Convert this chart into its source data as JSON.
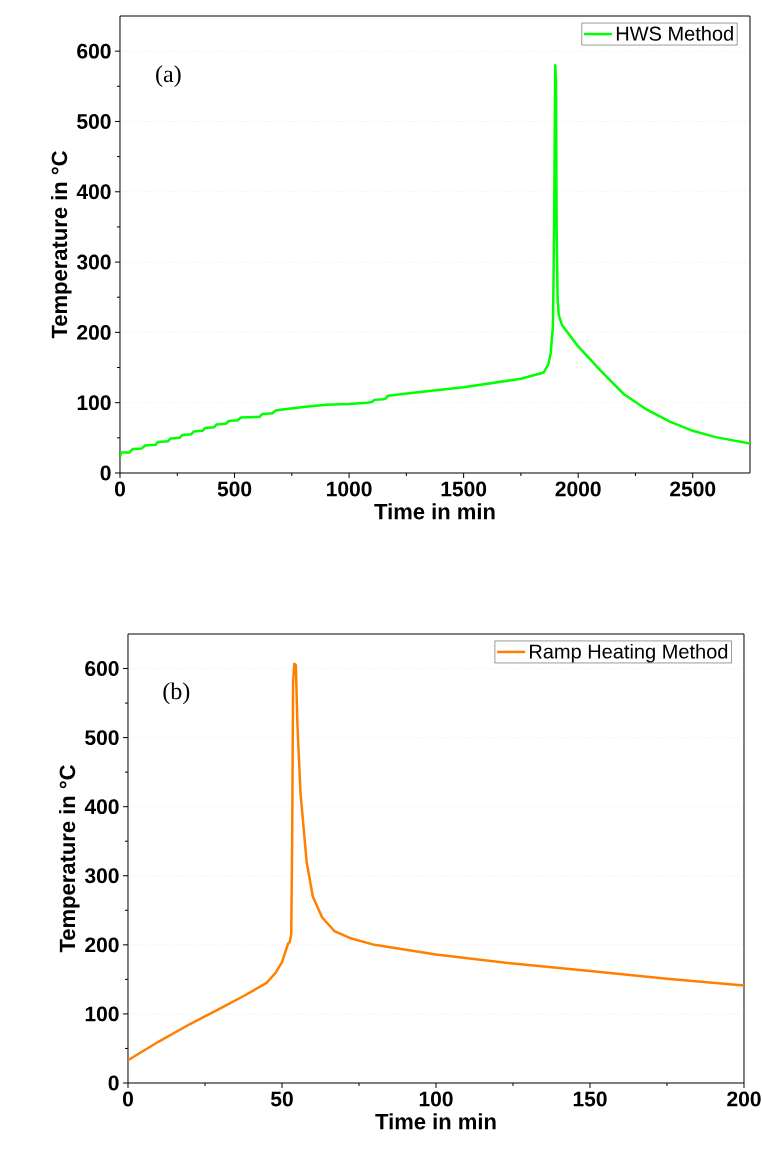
{
  "chart_data": [
    {
      "type": "line",
      "xlabel": "Time in min",
      "ylabel": "Temperature in °C",
      "annotations": [
        "(a)"
      ],
      "x": [
        0,
        5,
        40,
        55,
        95,
        110,
        155,
        165,
        210,
        220,
        260,
        272,
        310,
        322,
        360,
        372,
        410,
        422,
        462,
        475,
        515,
        528,
        610,
        622,
        665,
        680,
        700,
        800,
        900,
        1000,
        1080,
        1100,
        1110,
        1150,
        1160,
        1170,
        1300,
        1500,
        1750,
        1850,
        1870,
        1880,
        1890,
        1895,
        1898,
        1900,
        1903,
        1906,
        1910,
        1915,
        1930,
        2000,
        2100,
        2200,
        2300,
        2400,
        2500,
        2600,
        2750
      ],
      "series": [
        {
          "name": "HWS Method",
          "color": "#00ff00",
          "values": [
            22,
            29,
            29,
            34,
            35,
            39,
            40,
            44,
            45,
            49,
            50,
            54,
            55,
            59,
            60,
            64,
            65,
            69,
            70,
            74,
            75,
            79,
            80,
            84,
            85,
            89,
            90,
            94,
            97,
            98,
            100,
            101,
            104,
            105,
            106,
            110,
            115,
            122,
            134,
            143,
            155,
            170,
            210,
            350,
            500,
            580,
            560,
            350,
            250,
            225,
            210,
            180,
            145,
            112,
            90,
            73,
            60,
            51,
            42
          ]
        }
      ],
      "xlim": [
        0,
        2750
      ],
      "ylim": [
        0,
        650
      ],
      "xticks": [
        0,
        500,
        1000,
        1500,
        2000,
        2500
      ],
      "yticks": [
        0,
        100,
        200,
        300,
        400,
        500,
        600
      ],
      "grid": "y",
      "legend": "top right",
      "line_style": "solid"
    },
    {
      "type": "line",
      "xlabel": "Time in min",
      "ylabel": "Temperature in °C",
      "annotations": [
        "(b)"
      ],
      "x": [
        0,
        10,
        20,
        30,
        38,
        45,
        48,
        50,
        52,
        52.5,
        53,
        53.3,
        53.6,
        54,
        54.5,
        55,
        56,
        58,
        60,
        63,
        67,
        72,
        80,
        100,
        125,
        150,
        175,
        200
      ],
      "series": [
        {
          "name": "Ramp Heating Method",
          "color": "#ff8000",
          "values": [
            33,
            60,
            85,
            108,
            127,
            145,
            160,
            175,
            202,
            204,
            215,
            350,
            580,
            607,
            605,
            520,
            420,
            320,
            270,
            240,
            220,
            210,
            200,
            186,
            173,
            162,
            151,
            141
          ]
        }
      ],
      "xlim": [
        0,
        200
      ],
      "ylim": [
        0,
        650
      ],
      "xticks": [
        0,
        50,
        100,
        150,
        200
      ],
      "yticks": [
        0,
        100,
        200,
        300,
        400,
        500,
        600
      ],
      "grid": "y",
      "legend": "top right",
      "line_style": "solid"
    }
  ]
}
